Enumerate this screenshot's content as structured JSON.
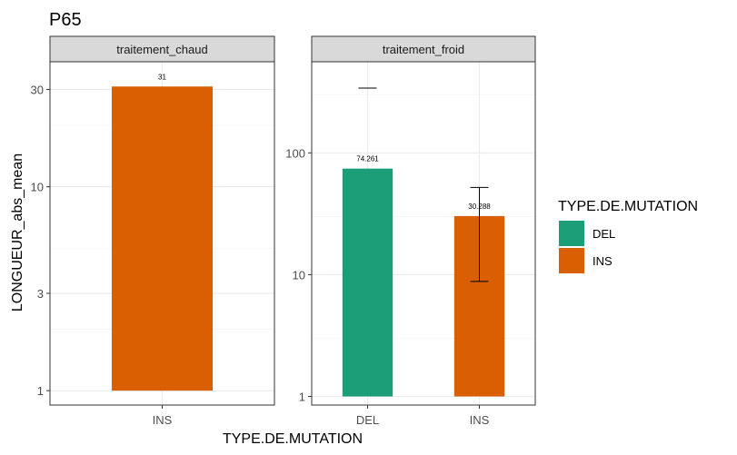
{
  "chart_data": {
    "type": "bar",
    "title": "P65",
    "xlabel": "TYPE.DE.MUTATION",
    "ylabel": "LONGUEUR_abs_mean",
    "y_scale": "log10",
    "legend": {
      "title": "TYPE.DE.MUTATION",
      "position": "right",
      "items": [
        {
          "label": "DEL",
          "color": "#1B9E77"
        },
        {
          "label": "INS",
          "color": "#D95F02"
        }
      ]
    },
    "panels": [
      {
        "strip": "traitement_chaud",
        "ylim": [
          0.85,
          41
        ],
        "yticks": [
          1,
          3,
          10,
          30
        ],
        "ytick_labels": [
          "1",
          "3",
          "10",
          "30"
        ],
        "minor_breaks": [
          2,
          5,
          20
        ],
        "categories": [
          "INS"
        ],
        "bars": [
          {
            "category": "INS",
            "value": 31,
            "label": "31",
            "color": "#D95F02"
          }
        ]
      },
      {
        "strip": "traitement_froid",
        "ylim": [
          0.85,
          560
        ],
        "yticks": [
          1,
          10,
          100
        ],
        "ytick_labels": [
          "1",
          "10",
          "100"
        ],
        "minor_breaks": [
          3,
          30,
          300
        ],
        "categories": [
          "DEL",
          "INS"
        ],
        "bars": [
          {
            "category": "DEL",
            "value": 74.261,
            "label": "74.261",
            "color": "#1B9E77",
            "err_low": null,
            "err_high": 340
          },
          {
            "category": "INS",
            "value": 30.288,
            "label": "30.288",
            "color": "#D95F02",
            "err_low": 8.8,
            "err_high": 52
          }
        ]
      }
    ],
    "grid": true
  }
}
